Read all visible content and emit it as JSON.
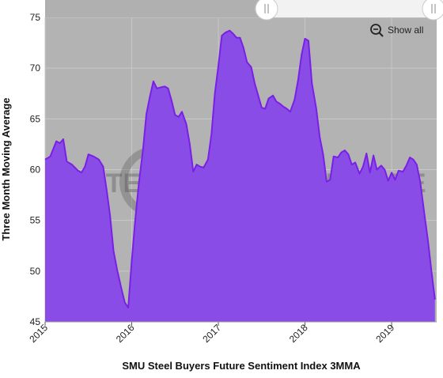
{
  "chart_data": {
    "type": "area",
    "xlabel": "SMU Steel Buyers Future Sentiment Index 3MMA",
    "ylabel": "Three Month Moving Average",
    "ylim": [
      45,
      75
    ],
    "xlim": [
      2015.0,
      2019.52
    ],
    "y_ticks": [
      45,
      50,
      55,
      60,
      65,
      70,
      75
    ],
    "x_ticks": [
      {
        "value": 2015,
        "label": "2015"
      },
      {
        "value": 2016,
        "label": "2016"
      },
      {
        "value": 2017,
        "label": "2017"
      },
      {
        "value": 2018,
        "label": "2018"
      },
      {
        "value": 2019,
        "label": "2019"
      }
    ],
    "grid": true,
    "series_color": "#7a1fe6",
    "fill_color": "#8a4ce6",
    "x": [
      2015.0,
      2015.06,
      2015.13,
      2015.17,
      2015.21,
      2015.25,
      2015.31,
      2015.38,
      2015.42,
      2015.46,
      2015.5,
      2015.56,
      2015.62,
      2015.67,
      2015.71,
      2015.75,
      2015.79,
      2015.83,
      2015.88,
      2015.92,
      2015.96,
      2016.0,
      2016.04,
      2016.08,
      2016.13,
      2016.17,
      2016.21,
      2016.25,
      2016.29,
      2016.33,
      2016.38,
      2016.42,
      2016.46,
      2016.5,
      2016.54,
      2016.58,
      2016.63,
      2016.67,
      2016.71,
      2016.75,
      2016.79,
      2016.83,
      2016.88,
      2016.92,
      2016.96,
      2017.0,
      2017.04,
      2017.08,
      2017.13,
      2017.17,
      2017.21,
      2017.25,
      2017.29,
      2017.33,
      2017.38,
      2017.42,
      2017.46,
      2017.5,
      2017.54,
      2017.58,
      2017.63,
      2017.67,
      2017.71,
      2017.75,
      2017.79,
      2017.83,
      2017.88,
      2017.92,
      2017.96,
      2018.0,
      2018.04,
      2018.08,
      2018.13,
      2018.17,
      2018.21,
      2018.25,
      2018.29,
      2018.33,
      2018.38,
      2018.42,
      2018.46,
      2018.5,
      2018.54,
      2018.58,
      2018.63,
      2018.67,
      2018.71,
      2018.75,
      2018.79,
      2018.83,
      2018.88,
      2018.92,
      2018.96,
      2019.0,
      2019.04,
      2019.08,
      2019.13,
      2019.17,
      2019.21,
      2019.25,
      2019.29,
      2019.33,
      2019.38,
      2019.42,
      2019.46,
      2019.5
    ],
    "values": [
      61.0,
      61.3,
      62.8,
      62.6,
      63.0,
      60.8,
      60.5,
      59.9,
      59.7,
      60.3,
      61.5,
      61.3,
      61.0,
      60.3,
      58.0,
      55.5,
      52.0,
      50.2,
      48.3,
      46.9,
      46.4,
      51.0,
      55.0,
      58.5,
      62.0,
      65.5,
      67.2,
      68.7,
      68.0,
      68.1,
      68.2,
      68.0,
      66.8,
      65.4,
      65.2,
      65.7,
      64.5,
      62.5,
      59.8,
      60.5,
      60.3,
      60.2,
      61.0,
      63.5,
      67.5,
      70.2,
      73.2,
      73.5,
      73.7,
      73.4,
      73.0,
      73.0,
      72.0,
      70.6,
      70.1,
      68.5,
      67.3,
      66.1,
      66.0,
      67.0,
      67.3,
      66.7,
      66.5,
      66.2,
      66.0,
      65.7,
      66.9,
      68.8,
      71.3,
      72.9,
      72.7,
      68.5,
      66.0,
      63.2,
      61.5,
      58.8,
      59.0,
      61.3,
      61.2,
      61.7,
      61.9,
      61.5,
      60.5,
      60.7,
      59.6,
      60.3,
      61.6,
      59.7,
      61.4,
      60.0,
      60.4,
      60.0,
      58.9,
      59.7,
      59.0,
      59.9,
      59.8,
      60.4,
      61.2,
      61.0,
      60.5,
      58.8,
      55.5,
      53.0,
      50.0,
      47.2
    ]
  },
  "ui": {
    "show_all_label": "Show all",
    "zoom_icon": "zoom-out-magnifier-icon",
    "watermark": "STEEL MARKET UPDATE"
  }
}
